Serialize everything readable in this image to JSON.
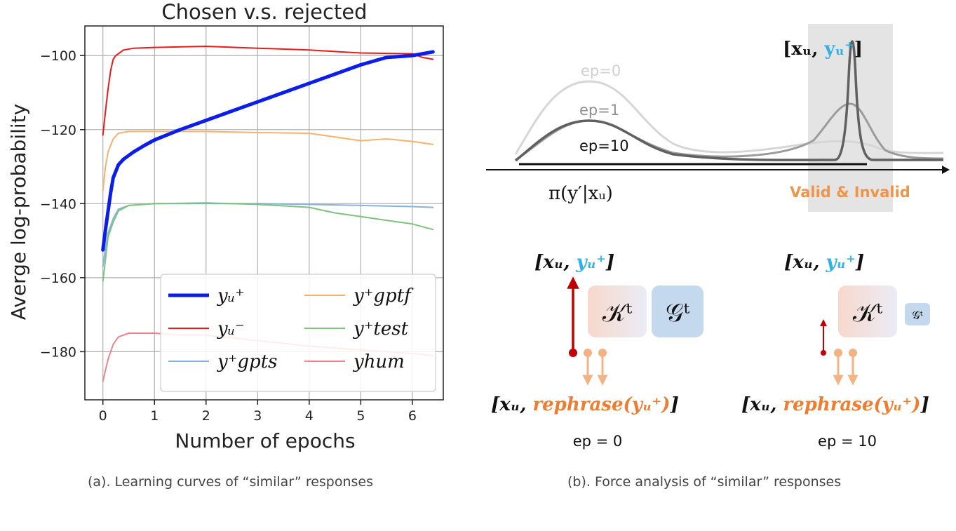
{
  "figure_a": {
    "caption": "(a). Learning curves of “similar” responses"
  },
  "figure_b": {
    "caption": "(b). Force analysis of “similar” responses",
    "curve_labels": [
      "ep=0",
      "ep=1",
      "ep=10"
    ],
    "axis_label": "π(y′|xᵤ)",
    "highlight_label": "Valid & Invalid",
    "peak_label_prefix": "[xᵤ, ",
    "peak_label_y": "yᵤ⁺",
    "peak_label_suffix": "]",
    "diagrams": [
      {
        "top_prefix": "[xᵤ, ",
        "top_y": "yᵤ⁺",
        "top_suffix": "]",
        "k_label": "𝒦ᵗ",
        "g_label": "𝒢ᵗ",
        "bottom_prefix": "[xᵤ, ",
        "bottom_main": "rephrase(yᵤ⁺)",
        "bottom_suffix": "]",
        "epoch_label": "ep = 0"
      },
      {
        "top_prefix": "[xᵤ, ",
        "top_y": "yᵤ⁺",
        "top_suffix": "]",
        "k_label": "𝒦ᵗ",
        "g_label": "𝒢ᵗ",
        "bottom_prefix": "[xᵤ, ",
        "bottom_main": "rephrase(yᵤ⁺)",
        "bottom_suffix": "]",
        "epoch_label": "ep = 10"
      }
    ]
  },
  "chart_data": {
    "type": "line",
    "title": "Chosen v.s. rejected",
    "xlabel": "Number of epochs",
    "ylabel": "Averge log-probability",
    "xlim": [
      -0.35,
      6.6
    ],
    "ylim": [
      -193,
      -92
    ],
    "xticks": [
      0,
      1,
      2,
      3,
      4,
      5,
      6
    ],
    "yticks": [
      -180,
      -160,
      -140,
      -120,
      -100
    ],
    "grid": true,
    "legend_position": "lower-right",
    "series": [
      {
        "name": "y_u^+",
        "legend_label": "yᵤ⁺",
        "color": "#0b1de8",
        "width": 5,
        "x": [
          0,
          0.05,
          0.1,
          0.15,
          0.2,
          0.3,
          0.4,
          0.6,
          0.8,
          1.0,
          1.5,
          2.0,
          2.5,
          3.0,
          3.5,
          4.0,
          4.5,
          5.0,
          5.5,
          6.0,
          6.4
        ],
        "y": [
          -152.5,
          -147,
          -142,
          -137,
          -133,
          -129.5,
          -128,
          -126,
          -124.3,
          -122.8,
          -120,
          -117.5,
          -115,
          -112.5,
          -110,
          -107.5,
          -105,
          -102.5,
          -100.5,
          -100,
          -99
        ]
      },
      {
        "name": "y_u^-",
        "legend_label": "yᵤ⁻",
        "color": "#e81b1b",
        "width": 2,
        "x": [
          0,
          0.05,
          0.1,
          0.15,
          0.2,
          0.25,
          0.3,
          0.4,
          0.6,
          1.0,
          2.0,
          3.0,
          4.0,
          5.0,
          6.0,
          6.2,
          6.4
        ],
        "y": [
          -121.5,
          -115,
          -109,
          -104,
          -101,
          -100,
          -99.5,
          -98.5,
          -98,
          -97.8,
          -97.5,
          -98,
          -98.5,
          -99.3,
          -99.5,
          -100.5,
          -101
        ]
      },
      {
        "name": "y_gptf^+",
        "legend_label": "y⁺gptf",
        "color": "#f6b26b",
        "width": 2,
        "x": [
          0,
          0.05,
          0.1,
          0.2,
          0.3,
          0.5,
          1.0,
          2.0,
          3.0,
          4.0,
          4.5,
          5.0,
          5.5,
          6.0,
          6.4
        ],
        "y": [
          -136.5,
          -130,
          -126,
          -122.5,
          -121,
          -120.5,
          -120.5,
          -120.5,
          -120.8,
          -121,
          -122,
          -123,
          -122.5,
          -123.2,
          -124
        ]
      },
      {
        "name": "y_test^+",
        "legend_label": "y⁺test",
        "color": "#7ec27e",
        "width": 2,
        "x": [
          0,
          0.05,
          0.1,
          0.2,
          0.3,
          0.5,
          1.0,
          2.0,
          3.0,
          4.0,
          4.5,
          5.0,
          5.5,
          6.0,
          6.4
        ],
        "y": [
          -161,
          -155,
          -149,
          -145,
          -142,
          -140.5,
          -140,
          -139.8,
          -140.2,
          -141,
          -142.5,
          -143.5,
          -144.5,
          -145.5,
          -147
        ]
      },
      {
        "name": "y_gpts^+",
        "legend_label": "y⁺gpts",
        "color": "#86b3dc",
        "width": 2,
        "x": [
          0,
          0.05,
          0.1,
          0.2,
          0.3,
          0.5,
          1.0,
          2.0,
          3.0,
          4.0,
          5.0,
          6.0,
          6.4
        ],
        "y": [
          -157,
          -152,
          -148,
          -144,
          -141.5,
          -140.5,
          -140,
          -140,
          -140,
          -140.2,
          -140.5,
          -140.8,
          -141
        ]
      },
      {
        "name": "y_hum",
        "legend_label": "yhum",
        "color": "#e8858d",
        "width": 2,
        "x": [
          0,
          0.05,
          0.1,
          0.15,
          0.2,
          0.3,
          0.5,
          1.0,
          1.5,
          2.0,
          3.0,
          4.0,
          5.0,
          6.0,
          6.4
        ],
        "y": [
          -188,
          -185,
          -182,
          -180,
          -178,
          -176,
          -175,
          -175,
          -175.5,
          -175.5,
          -177,
          -178.5,
          -179.5,
          -180.5,
          -181
        ]
      }
    ]
  }
}
